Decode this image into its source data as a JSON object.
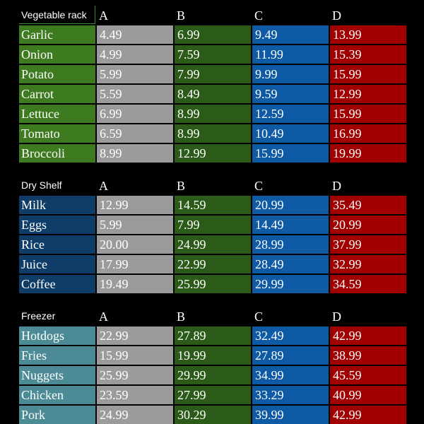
{
  "colors": {
    "name_veg": "#3e7a1f",
    "name_dry": "#0f3d68",
    "name_frz": "#4c8a96",
    "col_a": "#9b9b9b",
    "col_b": "#2b5a19",
    "col_c": "#0e5aa4",
    "col_d": "#a00000",
    "background": "#000000"
  },
  "sections": [
    {
      "title": "Vegetable rack",
      "columns": [
        "A",
        "B",
        "C",
        "D"
      ],
      "rows": [
        {
          "name": "Garlic",
          "values": [
            "4.49",
            "6.99",
            "9.49",
            "13.99"
          ]
        },
        {
          "name": "Onion",
          "values": [
            "4.99",
            "7.59",
            "11.99",
            "15.39"
          ]
        },
        {
          "name": "Potato",
          "values": [
            "5.99",
            "7.99",
            "9.99",
            "15.99"
          ]
        },
        {
          "name": "Carrot",
          "values": [
            "5.59",
            "8.49",
            "9.59",
            "12.99"
          ]
        },
        {
          "name": "Lettuce",
          "values": [
            "6.99",
            "8.99",
            "12.59",
            "15.99"
          ]
        },
        {
          "name": "Tomato",
          "values": [
            "6.59",
            "8.99",
            "10.49",
            "16.99"
          ]
        },
        {
          "name": "Broccoli",
          "values": [
            "8.99",
            "12.99",
            "15.99",
            "19.99"
          ]
        }
      ]
    },
    {
      "title": "Dry Shelf",
      "columns": [
        "A",
        "B",
        "C",
        "D"
      ],
      "rows": [
        {
          "name": "Milk",
          "values": [
            "12.99",
            "14.59",
            "20.99",
            "35.49"
          ]
        },
        {
          "name": "Eggs",
          "values": [
            "5.99",
            "7.99",
            "14.49",
            "20.99"
          ]
        },
        {
          "name": "Rice",
          "values": [
            "20.00",
            "24.99",
            "28.99",
            "37.99"
          ]
        },
        {
          "name": "Juice",
          "values": [
            "17.99",
            "22.99",
            "28.49",
            "32.99"
          ]
        },
        {
          "name": "Coffee",
          "values": [
            "19.49",
            "25.99",
            "29.99",
            "34.59"
          ]
        }
      ]
    },
    {
      "title": "Freezer",
      "columns": [
        "A",
        "B",
        "C",
        "D"
      ],
      "rows": [
        {
          "name": "Hotdogs",
          "values": [
            "22.99",
            "27.89",
            "32.49",
            "42.99"
          ]
        },
        {
          "name": "Fries",
          "values": [
            "15.99",
            "19.99",
            "27.89",
            "38.99"
          ]
        },
        {
          "name": "Nuggets",
          "values": [
            "25.99",
            "29.99",
            "34.99",
            "45.59"
          ]
        },
        {
          "name": "Chicken",
          "values": [
            "23.59",
            "27.99",
            "33.29",
            "40.99"
          ]
        },
        {
          "name": "Pork",
          "values": [
            "24.99",
            "30.29",
            "39.99",
            "42.99"
          ]
        }
      ]
    }
  ]
}
